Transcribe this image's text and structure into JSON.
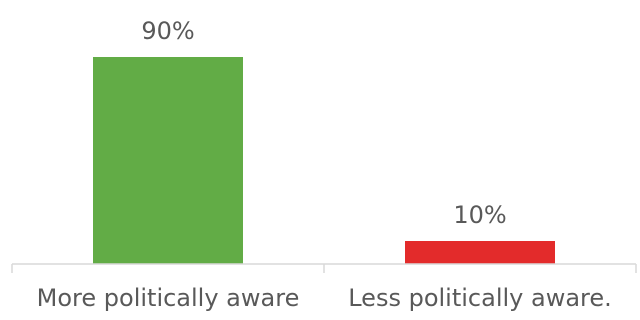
{
  "chart_data": {
    "type": "bar",
    "categories": [
      "More politically aware",
      "Less politically aware."
    ],
    "values": [
      90,
      10
    ],
    "data_labels": [
      "90%",
      "10%"
    ],
    "colors": [
      "#62ac46",
      "#e32b2b"
    ],
    "ylim": [
      0,
      100
    ],
    "grid": false,
    "legend": "none",
    "title": "",
    "xlabel": "",
    "ylabel": ""
  }
}
